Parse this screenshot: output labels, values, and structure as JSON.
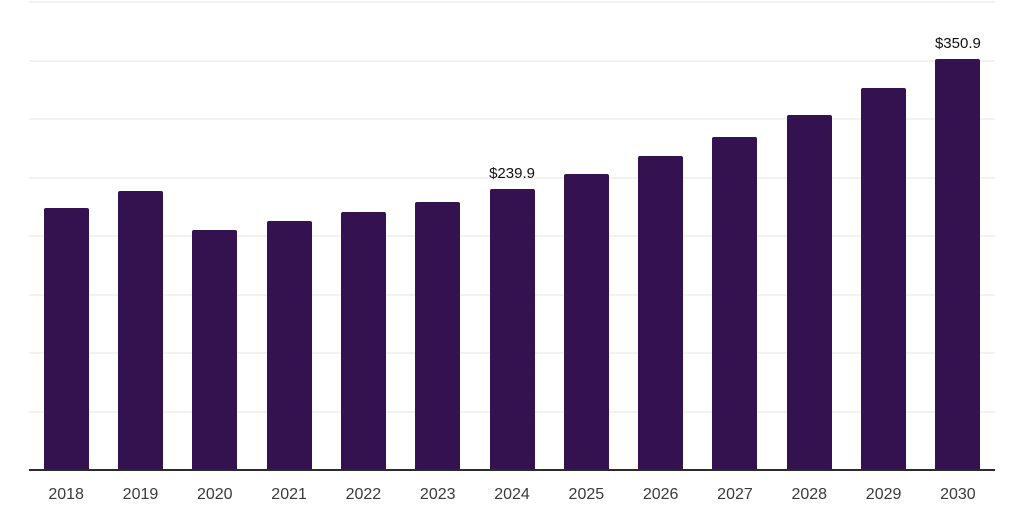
{
  "chart": {
    "background": "#ffffff",
    "bar_color": "#34124f",
    "grid_color": "#f2f2f4",
    "axis_color": "#2b2b2b",
    "tick_label_color": "#3a3a3a",
    "data_label_color": "#111111"
  },
  "chart_data": {
    "type": "bar",
    "title": "",
    "xlabel": "",
    "ylabel": "",
    "categories": [
      "2018",
      "2019",
      "2020",
      "2021",
      "2022",
      "2023",
      "2024",
      "2025",
      "2026",
      "2027",
      "2028",
      "2029",
      "2030"
    ],
    "values": [
      223.8,
      238.5,
      205.4,
      213.0,
      220.1,
      228.9,
      239.9,
      253.0,
      268.5,
      284.7,
      303.7,
      326.3,
      350.9
    ],
    "value_labels": {
      "2024": "$239.9",
      "2030": "$350.9"
    },
    "ylim": [
      0,
      400
    ],
    "grid_step": 50,
    "grid": true,
    "legend": false,
    "y_axis_labels_visible": false
  }
}
